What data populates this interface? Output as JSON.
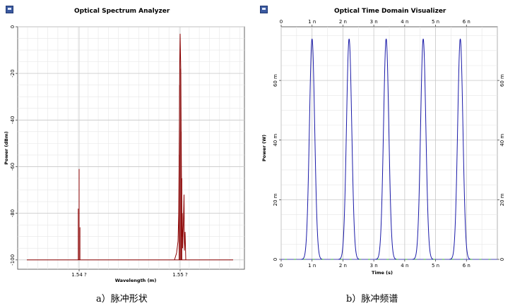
{
  "left": {
    "title": "Optical Spectrum Analyzer",
    "caption": "a）脉冲形状",
    "chart_data": {
      "type": "line",
      "xlabel": "Wavelength (m)",
      "ylabel": "Power (dBm)",
      "x_tick_labels": [
        "1.54 ?",
        "1.55 ?"
      ],
      "y_ticks": [
        0,
        -20,
        -40,
        -60,
        -80,
        -100
      ],
      "ylim": [
        -104,
        0
      ],
      "grid": true,
      "series": [
        {
          "color": "#8b0000",
          "peaks": [
            {
              "x": 1.54,
              "y": -61
            },
            {
              "x": 1.55,
              "y": -3
            }
          ]
        }
      ],
      "baseline": -100
    }
  },
  "right": {
    "title": "Optical Time Domain Visualizer",
    "caption": "b）脉冲频谱",
    "chart_data": {
      "type": "line",
      "xlabel": "Time (s)",
      "ylabel": "Power (W)",
      "x_ticks": [
        "0",
        "1 n",
        "2 n",
        "3 n",
        "4 n",
        "5 n",
        "6 n"
      ],
      "x_tick_values": [
        0,
        1,
        2,
        3,
        4,
        5,
        6
      ],
      "y_ticks": [
        "0",
        "20 m",
        "40 m",
        "60 m"
      ],
      "y_tick_values": [
        0,
        20,
        40,
        60
      ],
      "xlim": [
        0,
        7
      ],
      "ylim": [
        0,
        78
      ],
      "grid": true,
      "series": [
        {
          "color": "#1a1aa8",
          "pulse_centers_ns": [
            1.0,
            2.2,
            3.4,
            4.6,
            5.8
          ],
          "pulse_peak_mW": 74
        }
      ]
    }
  }
}
